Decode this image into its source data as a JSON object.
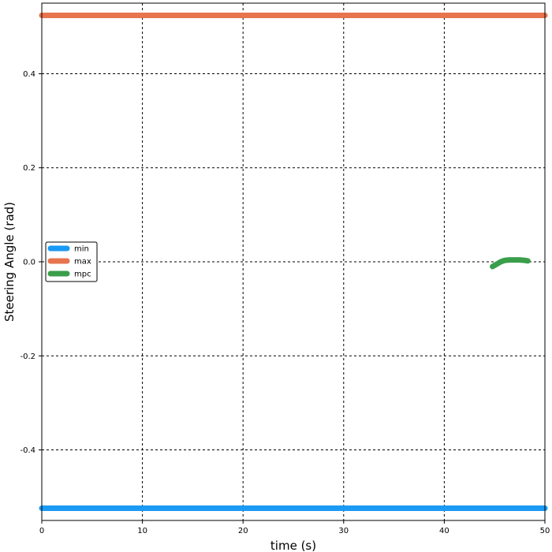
{
  "chart_data": {
    "type": "line",
    "title": "",
    "xlabel": "time (s)",
    "ylabel": "Steering Angle (rad)",
    "xlim": [
      0,
      50
    ],
    "ylim": [
      -0.55,
      0.55
    ],
    "xticks": [
      0,
      10,
      20,
      30,
      40,
      50
    ],
    "yticks": [
      -0.4,
      -0.2,
      0.0,
      0.2,
      0.4
    ],
    "xtick_labels": [
      "0",
      "10",
      "20",
      "30",
      "40",
      "50"
    ],
    "ytick_labels": [
      "-0.4",
      "-0.2",
      "0.0",
      "0.2",
      "0.4"
    ],
    "grid": true,
    "legend_position": "center-left",
    "series": [
      {
        "name": "min",
        "color": "#1a9af5",
        "x": [
          0,
          50
        ],
        "y": [
          -0.524,
          -0.524
        ]
      },
      {
        "name": "max",
        "color": "#e6744e",
        "x": [
          0,
          50
        ],
        "y": [
          0.524,
          0.524
        ]
      },
      {
        "name": "mpc",
        "color": "#3a9e4a",
        "x": [
          44.8,
          45.2,
          45.6,
          46.0,
          46.5,
          47.0,
          47.5,
          48.0,
          48.3
        ],
        "y": [
          -0.01,
          -0.005,
          0.0,
          0.003,
          0.004,
          0.004,
          0.004,
          0.003,
          0.002
        ]
      }
    ]
  }
}
